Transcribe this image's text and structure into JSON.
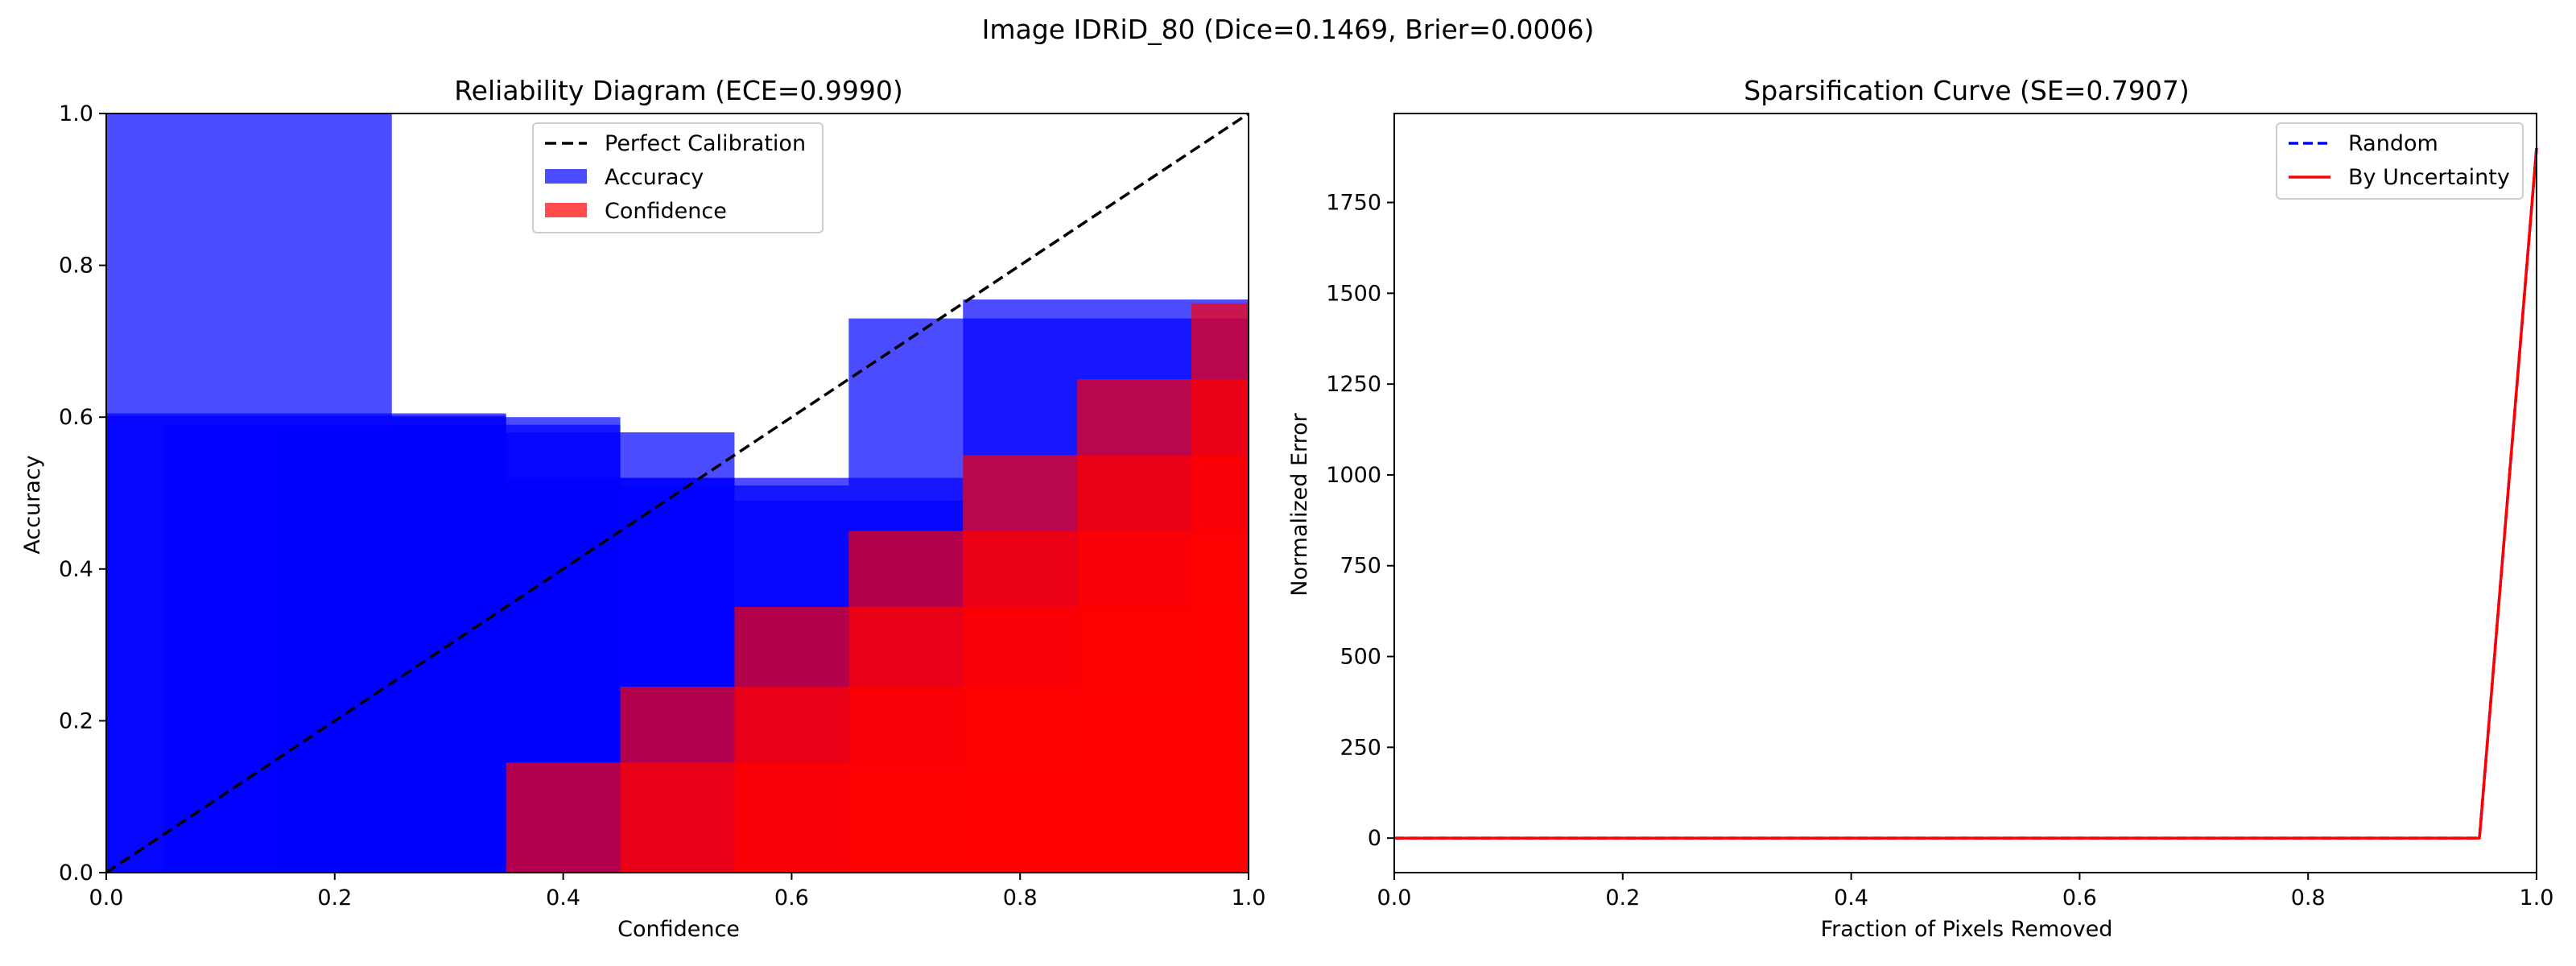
{
  "figure": {
    "suptitle": "Image IDRiD_80 (Dice=0.1469, Brier=0.0006)"
  },
  "chart_data": [
    {
      "type": "bar",
      "title": "Reliability Diagram (ECE=0.9990)",
      "xlabel": "Confidence",
      "ylabel": "Accuracy",
      "xlim": [
        0,
        1
      ],
      "ylim": [
        0,
        1
      ],
      "xticks": [
        "0.0",
        "0.2",
        "0.4",
        "0.6",
        "0.8",
        "1.0"
      ],
      "yticks": [
        "0.0",
        "0.2",
        "0.4",
        "0.6",
        "0.8",
        "1.0"
      ],
      "grid": false,
      "legend_position": "top-center",
      "legend": [
        "Perfect Calibration",
        "Accuracy",
        "Confidence"
      ],
      "colors": {
        "accuracy": "#0000ff",
        "confidence": "#ff0000",
        "perfect": "#000000"
      },
      "bar_alpha": 0.7,
      "accuracy_bars": [
        {
          "left": 0.0,
          "right": 0.25,
          "height": 1.0
        },
        {
          "left": 0.0,
          "right": 0.35,
          "height": 0.605
        },
        {
          "left": 0.0,
          "right": 0.35,
          "height": 0.602
        },
        {
          "left": 0.05,
          "right": 0.35,
          "height": 0.59
        },
        {
          "left": 0.15,
          "right": 0.35,
          "height": 0.58
        },
        {
          "left": 0.25,
          "right": 0.45,
          "height": 0.6
        },
        {
          "left": 0.25,
          "right": 0.45,
          "height": 0.59
        },
        {
          "left": 0.25,
          "right": 0.55,
          "height": 0.51
        },
        {
          "left": 0.35,
          "right": 0.55,
          "height": 0.58
        },
        {
          "left": 0.35,
          "right": 0.55,
          "height": 0.52
        },
        {
          "left": 0.45,
          "right": 0.75,
          "height": 0.52
        },
        {
          "left": 0.55,
          "right": 0.65,
          "height": 0.51
        },
        {
          "left": 0.55,
          "right": 0.75,
          "height": 0.49
        },
        {
          "left": 0.65,
          "right": 0.75,
          "height": 0.73
        },
        {
          "left": 0.75,
          "right": 1.0,
          "height": 0.755
        },
        {
          "left": 0.75,
          "right": 1.0,
          "height": 0.73
        }
      ],
      "confidence_bars": [
        {
          "left": 0.35,
          "right": 0.45,
          "height": 0.145
        },
        {
          "left": 0.45,
          "right": 0.55,
          "height": 0.245
        },
        {
          "left": 0.45,
          "right": 0.55,
          "height": 0.145
        },
        {
          "left": 0.55,
          "right": 0.65,
          "height": 0.35
        },
        {
          "left": 0.55,
          "right": 0.65,
          "height": 0.245
        },
        {
          "left": 0.55,
          "right": 0.65,
          "height": 0.145
        },
        {
          "left": 0.65,
          "right": 0.75,
          "height": 0.45
        },
        {
          "left": 0.65,
          "right": 0.75,
          "height": 0.35
        },
        {
          "left": 0.65,
          "right": 0.75,
          "height": 0.245
        },
        {
          "left": 0.65,
          "right": 0.75,
          "height": 0.145
        },
        {
          "left": 0.75,
          "right": 0.85,
          "height": 0.55
        },
        {
          "left": 0.75,
          "right": 0.85,
          "height": 0.45
        },
        {
          "left": 0.75,
          "right": 0.85,
          "height": 0.35
        },
        {
          "left": 0.75,
          "right": 0.85,
          "height": 0.245
        },
        {
          "left": 0.75,
          "right": 0.85,
          "height": 0.145
        },
        {
          "left": 0.85,
          "right": 0.95,
          "height": 0.65
        },
        {
          "left": 0.85,
          "right": 0.95,
          "height": 0.55
        },
        {
          "left": 0.85,
          "right": 0.95,
          "height": 0.45
        },
        {
          "left": 0.85,
          "right": 0.95,
          "height": 0.35
        },
        {
          "left": 0.85,
          "right": 0.95,
          "height": 0.245
        },
        {
          "left": 0.85,
          "right": 0.95,
          "height": 0.145
        },
        {
          "left": 0.95,
          "right": 1.0,
          "height": 0.75
        },
        {
          "left": 0.95,
          "right": 1.0,
          "height": 0.65
        },
        {
          "left": 0.95,
          "right": 1.0,
          "height": 0.55
        },
        {
          "left": 0.95,
          "right": 1.0,
          "height": 0.45
        },
        {
          "left": 0.95,
          "right": 1.0,
          "height": 0.35
        },
        {
          "left": 0.95,
          "right": 1.0,
          "height": 0.245
        },
        {
          "left": 0.95,
          "right": 1.0,
          "height": 0.145
        }
      ],
      "perfect_line": {
        "x": [
          0,
          1
        ],
        "y": [
          0,
          1
        ]
      }
    },
    {
      "type": "line",
      "title": "Sparsification Curve (SE=0.7907)",
      "xlabel": "Fraction of Pixels Removed",
      "ylabel": "Normalized Error",
      "xlim": [
        0,
        1
      ],
      "ylim": [
        -95,
        1995
      ],
      "xticks": [
        "0.0",
        "0.2",
        "0.4",
        "0.6",
        "0.8",
        "1.0"
      ],
      "yticks": [
        {
          "value": 0,
          "label": "0"
        },
        {
          "value": 250,
          "label": "250"
        },
        {
          "value": 500,
          "label": "500"
        },
        {
          "value": 750,
          "label": "750"
        },
        {
          "value": 1000,
          "label": "1000"
        },
        {
          "value": 1250,
          "label": "1250"
        },
        {
          "value": 1500,
          "label": "1500"
        },
        {
          "value": 1750,
          "label": "1750"
        }
      ],
      "grid": false,
      "legend_position": "top-right",
      "series": [
        {
          "name": "Random",
          "color": "#0000ff",
          "dash": "dashed",
          "x": [
            0.0,
            0.95,
            1.0
          ],
          "y": [
            0,
            0,
            1900
          ]
        },
        {
          "name": "By Uncertainty",
          "color": "#ff0000",
          "dash": "solid",
          "x": [
            0.0,
            0.95,
            1.0
          ],
          "y": [
            0,
            0,
            1900
          ]
        }
      ]
    }
  ]
}
